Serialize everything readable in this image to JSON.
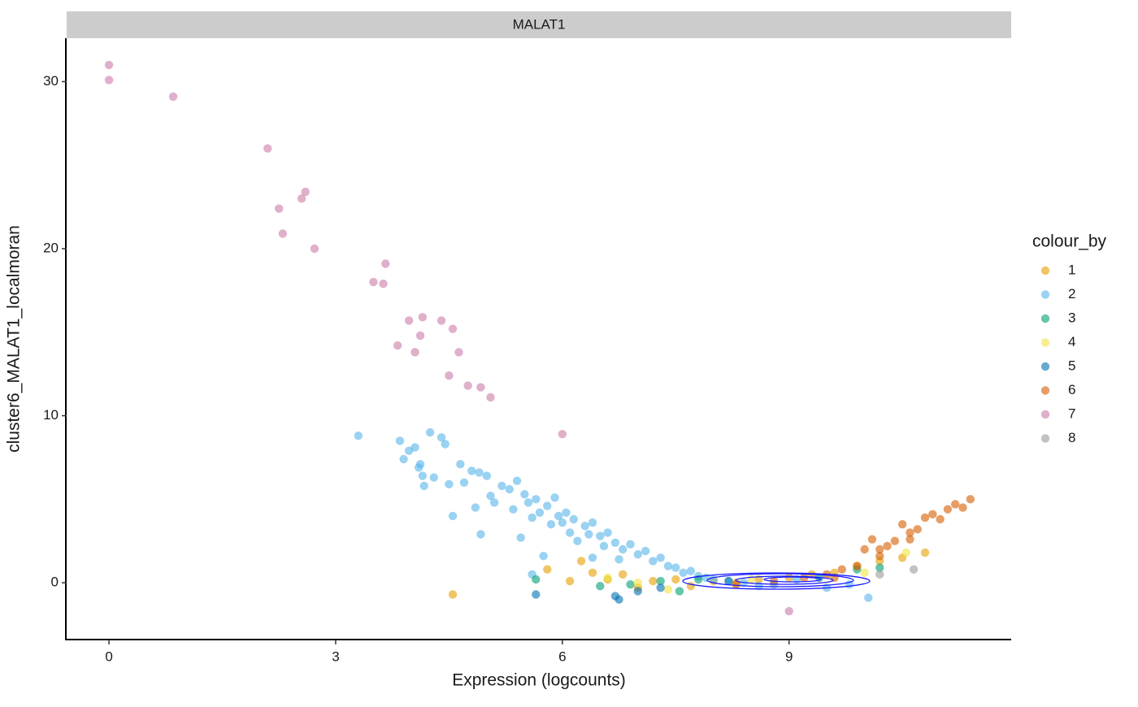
{
  "chart_data": {
    "type": "scatter",
    "strip_label": "MALAT1",
    "x_label": "Expression (logcounts)",
    "y_label": "cluster6_MALAT1_localmoran",
    "legend_title": "colour_by",
    "legend_position": "right",
    "xlim": [
      -0.56,
      11.94
    ],
    "ylim": [
      -3.4,
      32.6
    ],
    "xticks": [
      0,
      3,
      6,
      9
    ],
    "yticks": [
      0,
      10,
      20,
      30
    ],
    "series": [
      {
        "name": "1",
        "color": "#E69F00",
        "x": [
          4.55,
          5.8,
          6.1,
          6.25,
          6.4,
          6.6,
          6.8,
          7.0,
          7.2,
          7.5,
          7.7,
          8.0,
          8.3,
          8.6,
          9.0,
          9.3,
          9.6,
          9.9,
          10.2,
          10.5,
          10.8
        ],
        "y": [
          -0.7,
          0.8,
          0.1,
          1.3,
          0.6,
          0.2,
          0.5,
          -0.3,
          0.1,
          0.2,
          -0.2,
          0.1,
          0.0,
          0.2,
          0.3,
          0.5,
          0.6,
          1.0,
          1.3,
          1.5,
          1.8
        ]
      },
      {
        "name": "2",
        "color": "#56B4E9",
        "x": [
          3.3,
          3.85,
          3.9,
          3.97,
          4.05,
          4.1,
          4.12,
          4.15,
          4.17,
          4.25,
          4.3,
          4.4,
          4.45,
          4.5,
          4.55,
          4.65,
          4.7,
          4.8,
          4.85,
          4.9,
          4.92,
          5.0,
          5.05,
          5.1,
          5.2,
          5.3,
          5.35,
          5.4,
          5.45,
          5.5,
          5.55,
          5.6,
          5.65,
          5.7,
          5.75,
          5.8,
          5.85,
          5.9,
          5.95,
          6.0,
          6.05,
          6.1,
          6.15,
          6.2,
          6.3,
          6.35,
          6.4,
          6.5,
          6.55,
          6.6,
          6.7,
          6.75,
          6.8,
          6.9,
          7.0,
          7.1,
          7.2,
          7.3,
          7.4,
          7.5,
          7.6,
          7.7,
          7.8,
          7.9,
          8.0,
          8.2,
          8.4,
          8.6,
          8.8,
          9.1,
          9.5,
          9.8,
          10.05,
          5.6,
          6.4
        ],
        "y": [
          8.8,
          8.5,
          7.4,
          7.9,
          8.1,
          6.9,
          7.1,
          6.4,
          5.8,
          9.0,
          6.3,
          8.7,
          8.3,
          5.9,
          4.0,
          7.1,
          6.0,
          6.7,
          4.5,
          6.6,
          2.9,
          6.4,
          5.2,
          4.8,
          5.8,
          5.6,
          4.4,
          6.1,
          2.7,
          5.3,
          4.8,
          3.9,
          5.0,
          4.2,
          1.6,
          4.6,
          3.5,
          5.1,
          4.0,
          3.6,
          4.2,
          3.0,
          3.8,
          2.5,
          3.4,
          2.9,
          3.6,
          2.8,
          2.2,
          3.0,
          2.4,
          1.4,
          2.0,
          2.3,
          1.7,
          1.9,
          1.3,
          1.5,
          1.0,
          0.9,
          0.6,
          0.7,
          0.4,
          0.3,
          0.2,
          0.1,
          0.0,
          -0.2,
          -0.1,
          0.2,
          -0.3,
          -0.1,
          -0.9,
          0.5,
          1.5
        ]
      },
      {
        "name": "3",
        "color": "#009E73",
        "x": [
          5.65,
          6.5,
          6.9,
          7.3,
          7.55,
          7.8,
          9.9,
          10.2,
          9.4
        ],
        "y": [
          0.2,
          -0.2,
          -0.1,
          0.1,
          -0.5,
          0.2,
          0.8,
          0.9,
          0.3
        ]
      },
      {
        "name": "4",
        "color": "#F0E442",
        "x": [
          6.6,
          7.0,
          7.4,
          8.5,
          10.0,
          10.55
        ],
        "y": [
          0.3,
          0.0,
          -0.4,
          0.2,
          0.6,
          1.8
        ]
      },
      {
        "name": "5",
        "color": "#0072B2",
        "x": [
          5.65,
          6.7,
          6.75,
          7.0,
          7.3,
          8.2
        ],
        "y": [
          -0.7,
          -0.8,
          -1.0,
          -0.5,
          -0.3,
          0.1
        ]
      },
      {
        "name": "6",
        "color": "#D55E00",
        "x": [
          8.3,
          8.8,
          9.2,
          9.5,
          9.7,
          9.9,
          10.0,
          10.1,
          10.2,
          10.3,
          10.4,
          10.5,
          10.6,
          10.7,
          10.8,
          10.9,
          11.0,
          11.1,
          11.2,
          11.3,
          11.4,
          9.6,
          10.2,
          10.6
        ],
        "y": [
          -0.1,
          0.1,
          0.3,
          0.5,
          0.8,
          1.0,
          2.0,
          2.6,
          1.6,
          2.2,
          2.5,
          3.5,
          3.0,
          3.2,
          3.9,
          4.1,
          3.8,
          4.4,
          4.7,
          4.5,
          5.0,
          0.3,
          2.0,
          2.6
        ]
      },
      {
        "name": "7",
        "color": "#CC79A7",
        "x": [
          0,
          0,
          0.85,
          2.1,
          2.25,
          2.3,
          2.55,
          2.6,
          2.72,
          3.5,
          3.63,
          3.66,
          3.82,
          3.97,
          4.05,
          4.12,
          4.15,
          4.4,
          4.5,
          4.55,
          4.63,
          4.75,
          4.92,
          5.05,
          6.0,
          9.0
        ],
        "y": [
          31.0,
          30.1,
          29.1,
          26.0,
          22.4,
          20.9,
          23.0,
          23.4,
          20.0,
          18.0,
          17.9,
          19.1,
          14.2,
          15.7,
          13.8,
          14.8,
          15.9,
          15.7,
          12.4,
          15.2,
          13.8,
          11.8,
          11.7,
          11.1,
          8.9,
          -1.7
        ]
      },
      {
        "name": "8",
        "color": "#999999",
        "x": [
          10.2,
          10.65
        ],
        "y": [
          0.5,
          0.8
        ]
      }
    ]
  }
}
